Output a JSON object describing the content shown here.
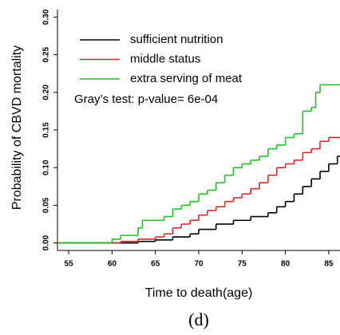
{
  "chart_data": {
    "type": "step",
    "ylabel": "Probability of CBVD mortality",
    "xlabel": "Time to death(age)",
    "caption": "(d)",
    "annotation": "Gray’s test: p-value= 6e-04",
    "xlim": [
      53.7,
      86.3
    ],
    "ylim": [
      -0.01,
      0.31
    ],
    "xticks": [
      55,
      60,
      65,
      70,
      75,
      80,
      85
    ],
    "yticks": [
      {
        "value": 0,
        "label": "0.00"
      },
      0.05,
      {
        "value": 0.1,
        "label": "0.10"
      },
      0.15,
      {
        "value": 0.2,
        "label": "0.20"
      },
      0.25,
      {
        "value": 0.3,
        "label": "0.30"
      }
    ],
    "series": [
      {
        "name": "sufficient nutrition",
        "color": "#000000",
        "x": [
          53.7,
          63,
          65,
          67,
          69,
          70,
          72,
          74,
          76,
          78,
          79,
          80,
          81,
          82,
          83,
          84,
          85,
          86
        ],
        "values": [
          0,
          0.002,
          0.004,
          0.008,
          0.012,
          0.018,
          0.025,
          0.03,
          0.035,
          0.04,
          0.048,
          0.055,
          0.065,
          0.075,
          0.085,
          0.095,
          0.105,
          0.115
        ]
      },
      {
        "name": "middle status",
        "color": "#e0262a",
        "x": [
          53.7,
          61,
          63,
          65,
          66,
          67,
          68,
          69,
          70,
          71,
          72,
          73,
          74,
          75,
          76,
          77,
          78,
          79,
          80,
          81,
          82,
          83,
          84,
          85
        ],
        "values": [
          0,
          0.002,
          0.005,
          0.008,
          0.012,
          0.02,
          0.025,
          0.03,
          0.037,
          0.043,
          0.048,
          0.055,
          0.06,
          0.065,
          0.072,
          0.08,
          0.09,
          0.1,
          0.105,
          0.11,
          0.12,
          0.125,
          0.135,
          0.14
        ]
      },
      {
        "name": "extra serving of meat",
        "color": "#1fc21f",
        "x": [
          53.7,
          60,
          61,
          63,
          63.5,
          66,
          67,
          68,
          69,
          70,
          71,
          72,
          73,
          74,
          75,
          76,
          77,
          78,
          79,
          80,
          81,
          82,
          83,
          83.5,
          84
        ],
        "values": [
          0,
          0.005,
          0.01,
          0.02,
          0.03,
          0.035,
          0.045,
          0.05,
          0.055,
          0.065,
          0.07,
          0.08,
          0.09,
          0.1,
          0.105,
          0.11,
          0.115,
          0.125,
          0.13,
          0.14,
          0.145,
          0.175,
          0.18,
          0.2,
          0.21
        ]
      }
    ]
  }
}
